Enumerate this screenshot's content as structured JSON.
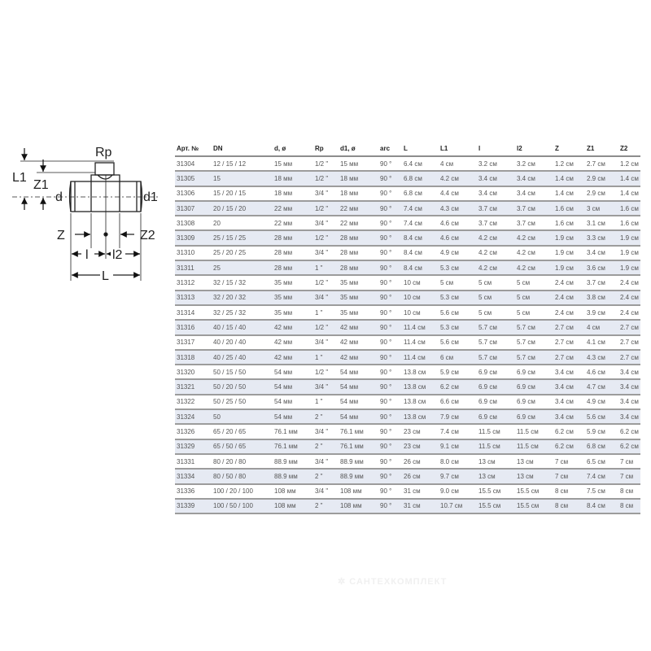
{
  "diagram": {
    "labels": {
      "Rp": "Rp",
      "L1": "L1",
      "Z1": "Z1",
      "d": "d",
      "d1": "d1",
      "Z": "Z",
      "Z2": "Z2",
      "l": "l",
      "l2": "l2",
      "L": "L"
    }
  },
  "table": {
    "headers": [
      "Арт. №",
      "DN",
      "d, ø",
      "Rp",
      "d1, ø",
      "arc",
      "L",
      "L1",
      "l",
      "l2",
      "Z",
      "Z1",
      "Z2"
    ],
    "rows": [
      [
        "31304",
        "12 / 15 / 12",
        "15 мм",
        "1/2 \"",
        "15 мм",
        "90 °",
        "6.4 см",
        "4 см",
        "3.2 см",
        "3.2 см",
        "1.2 см",
        "2.7 см",
        "1.2 см"
      ],
      [
        "31305",
        "15",
        "18 мм",
        "1/2 \"",
        "18 мм",
        "90 °",
        "6.8 см",
        "4.2 см",
        "3.4 см",
        "3.4 см",
        "1.4 см",
        "2.9 см",
        "1.4 см"
      ],
      [
        "31306",
        "15 / 20 / 15",
        "18 мм",
        "3/4 \"",
        "18 мм",
        "90 °",
        "6.8 см",
        "4.4 см",
        "3.4 см",
        "3.4 см",
        "1.4 см",
        "2.9 см",
        "1.4 см"
      ],
      [
        "31307",
        "20 / 15 / 20",
        "22 мм",
        "1/2 \"",
        "22 мм",
        "90 °",
        "7.4 см",
        "4.3 см",
        "3.7 см",
        "3.7 см",
        "1.6 см",
        "3 см",
        "1.6 см"
      ],
      [
        "31308",
        "20",
        "22 мм",
        "3/4 \"",
        "22 мм",
        "90 °",
        "7.4 см",
        "4.6 см",
        "3.7 см",
        "3.7 см",
        "1.6 см",
        "3.1 см",
        "1.6 см"
      ],
      [
        "31309",
        "25 / 15 / 25",
        "28 мм",
        "1/2 \"",
        "28 мм",
        "90 °",
        "8.4 см",
        "4.6 см",
        "4.2 см",
        "4.2 см",
        "1.9 см",
        "3.3 см",
        "1.9 см"
      ],
      [
        "31310",
        "25 / 20 / 25",
        "28 мм",
        "3/4 \"",
        "28 мм",
        "90 °",
        "8.4 см",
        "4.9 см",
        "4.2 см",
        "4.2 см",
        "1.9 см",
        "3.4 см",
        "1.9 см"
      ],
      [
        "31311",
        "25",
        "28 мм",
        "1 \"",
        "28 мм",
        "90 °",
        "8.4 см",
        "5.3 см",
        "4.2 см",
        "4.2 см",
        "1.9 см",
        "3.6 см",
        "1.9 см"
      ],
      [
        "31312",
        "32 / 15 / 32",
        "35 мм",
        "1/2 \"",
        "35 мм",
        "90 °",
        "10 см",
        "5 см",
        "5 см",
        "5 см",
        "2.4 см",
        "3.7 см",
        "2.4 см"
      ],
      [
        "31313",
        "32 / 20 / 32",
        "35 мм",
        "3/4 \"",
        "35 мм",
        "90 °",
        "10 см",
        "5.3 см",
        "5 см",
        "5 см",
        "2.4 см",
        "3.8 см",
        "2.4 см"
      ],
      [
        "31314",
        "32 / 25 / 32",
        "35 мм",
        "1 \"",
        "35 мм",
        "90 °",
        "10 см",
        "5.6 см",
        "5 см",
        "5 см",
        "2.4 см",
        "3.9 см",
        "2.4 см"
      ],
      [
        "31316",
        "40 / 15 / 40",
        "42 мм",
        "1/2 \"",
        "42 мм",
        "90 °",
        "11.4 см",
        "5.3 см",
        "5.7 см",
        "5.7 см",
        "2.7 см",
        "4 см",
        "2.7 см"
      ],
      [
        "31317",
        "40 / 20 / 40",
        "42 мм",
        "3/4 \"",
        "42 мм",
        "90 °",
        "11.4 см",
        "5.6 см",
        "5.7 см",
        "5.7 см",
        "2.7 см",
        "4.1 см",
        "2.7 см"
      ],
      [
        "31318",
        "40 / 25 / 40",
        "42 мм",
        "1 \"",
        "42 мм",
        "90 °",
        "11.4 см",
        "6 см",
        "5.7 см",
        "5.7 см",
        "2.7 см",
        "4.3 см",
        "2.7 см"
      ],
      [
        "31320",
        "50 / 15 / 50",
        "54 мм",
        "1/2 \"",
        "54 мм",
        "90 °",
        "13.8 см",
        "5.9 см",
        "6.9 см",
        "6.9 см",
        "3.4 см",
        "4.6 см",
        "3.4 см"
      ],
      [
        "31321",
        "50 / 20 / 50",
        "54 мм",
        "3/4 \"",
        "54 мм",
        "90 °",
        "13.8 см",
        "6.2 см",
        "6.9 см",
        "6.9 см",
        "3.4 см",
        "4.7 см",
        "3.4 см"
      ],
      [
        "31322",
        "50 / 25 / 50",
        "54 мм",
        "1 \"",
        "54 мм",
        "90 °",
        "13.8 см",
        "6.6 см",
        "6.9 см",
        "6.9 см",
        "3.4 см",
        "4.9 см",
        "3.4 см"
      ],
      [
        "31324",
        "50",
        "54 мм",
        "2 \"",
        "54 мм",
        "90 °",
        "13.8 см",
        "7.9 см",
        "6.9 см",
        "6.9 см",
        "3.4 см",
        "5.6 см",
        "3.4 см"
      ],
      [
        "31326",
        "65 / 20 / 65",
        "76.1 мм",
        "3/4 \"",
        "76.1 мм",
        "90 °",
        "23 см",
        "7.4 см",
        "11.5 см",
        "11.5 см",
        "6.2 см",
        "5.9 см",
        "6.2 см"
      ],
      [
        "31329",
        "65 / 50 / 65",
        "76.1 мм",
        "2 \"",
        "76.1 мм",
        "90 °",
        "23 см",
        "9.1 см",
        "11.5 см",
        "11.5 см",
        "6.2 см",
        "6.8 см",
        "6.2 см"
      ],
      [
        "31331",
        "80 / 20 / 80",
        "88.9 мм",
        "3/4 \"",
        "88.9 мм",
        "90 °",
        "26 см",
        "8.0 см",
        "13 см",
        "13 см",
        "7 см",
        "6.5 см",
        "7 см"
      ],
      [
        "31334",
        "80 / 50 / 80",
        "88.9 мм",
        "2 \"",
        "88.9 мм",
        "90 °",
        "26 см",
        "9.7 см",
        "13 см",
        "13 см",
        "7 см",
        "7.4 см",
        "7 см"
      ],
      [
        "31336",
        "100 / 20 / 100",
        "108 мм",
        "3/4 \"",
        "108 мм",
        "90 °",
        "31 см",
        "9.0 см",
        "15.5 см",
        "15.5 см",
        "8 см",
        "7.5 см",
        "8 см"
      ],
      [
        "31339",
        "100 / 50 / 100",
        "108 мм",
        "2 \"",
        "108 мм",
        "90 °",
        "31 см",
        "10.7 см",
        "15.5 см",
        "15.5 см",
        "8 см",
        "8.4 см",
        "8 см"
      ]
    ]
  },
  "watermark": "САНТЕХКОМПЛЕКТ",
  "colors": {
    "row_alt": "#e6eaf3",
    "row_border": "#9c9c9c"
  }
}
